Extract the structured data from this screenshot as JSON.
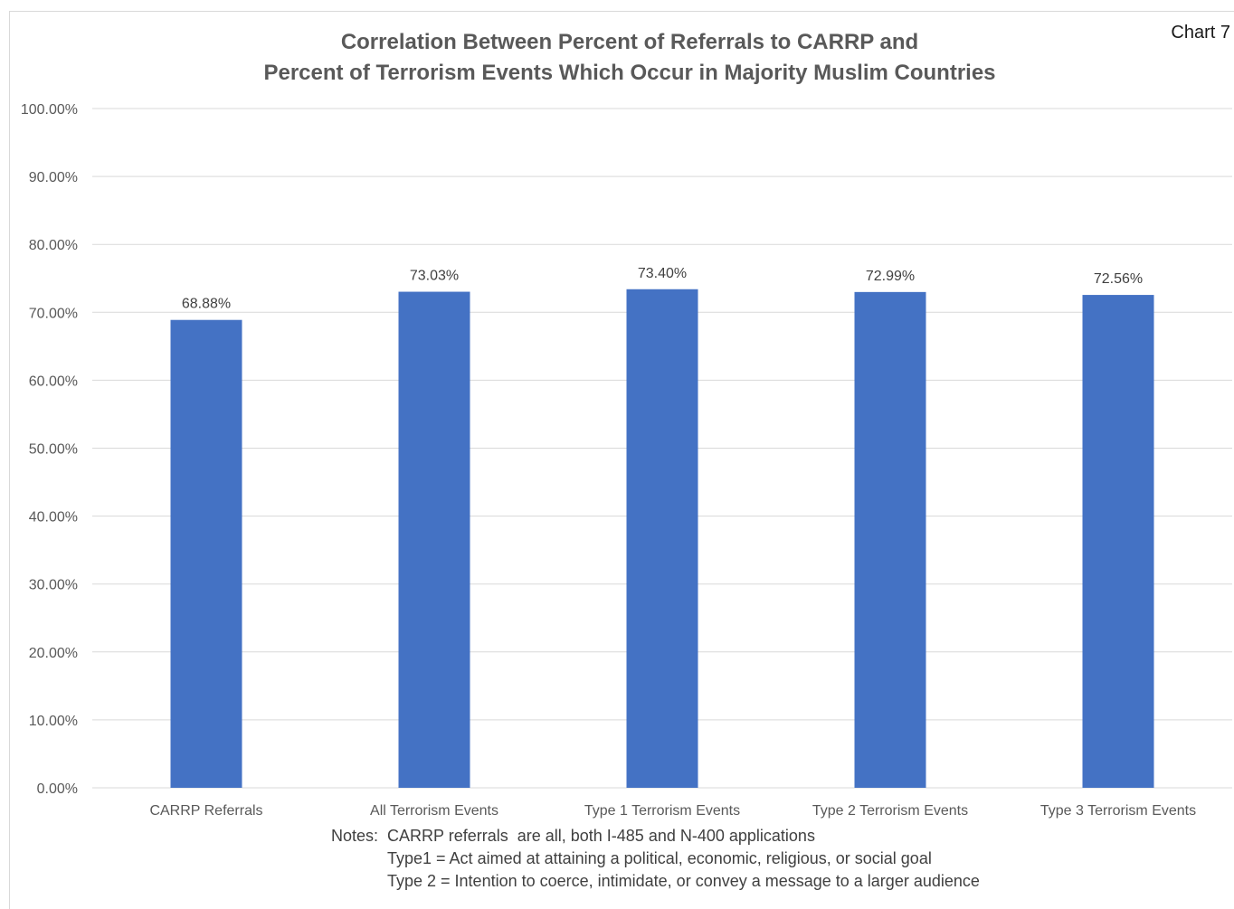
{
  "chart_tag": "Chart 7",
  "chart_data": {
    "type": "bar",
    "title": [
      "Correlation Between Percent of Referrals to CARRP and",
      "Percent of Terrorism Events Which Occur in Majority Muslim Countries"
    ],
    "categories": [
      "CARRP Referrals",
      "All Terrorism Events",
      "Type 1 Terrorism Events",
      "Type 2 Terrorism Events",
      "Type 3 Terrorism Events"
    ],
    "values": [
      68.88,
      73.03,
      73.4,
      72.99,
      72.56
    ],
    "data_labels": [
      "68.88%",
      "73.03%",
      "73.40%",
      "72.99%",
      "72.56%"
    ],
    "ylim": [
      0,
      100
    ],
    "ytick_labels": [
      "0.00%",
      "10.00%",
      "20.00%",
      "30.00%",
      "40.00%",
      "50.00%",
      "60.00%",
      "70.00%",
      "80.00%",
      "90.00%",
      "100.00%"
    ],
    "xlabel": "",
    "ylabel": "",
    "grid": true,
    "legend": "none",
    "bar_color": "#4472C4",
    "grid_color": "#d9d9d9"
  },
  "notes": {
    "line1": "Notes:  CARRP referrals  are all, both I-485 and N-400 applications",
    "line2": "Type1 = Act aimed at attaining a political, economic, religious, or social goal",
    "line3": "Type 2 = Intention to coerce, intimidate, or convey a message to a larger audience"
  }
}
